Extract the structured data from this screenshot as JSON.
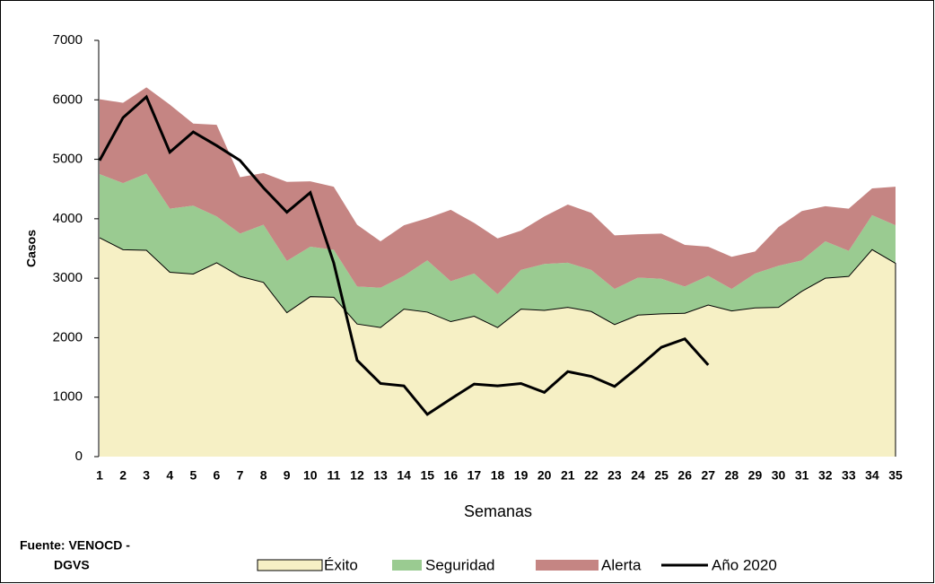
{
  "chart_data": {
    "type": "area",
    "x_label": "Semanas",
    "y_label": "Casos",
    "source": [
      "Fuente: VENOCD -",
      "DGVS"
    ],
    "categories": [
      "1",
      "2",
      "3",
      "4",
      "5",
      "6",
      "7",
      "8",
      "9",
      "10",
      "11",
      "12",
      "13",
      "14",
      "15",
      "16",
      "17",
      "18",
      "19",
      "20",
      "21",
      "22",
      "23",
      "24",
      "25",
      "26",
      "27",
      "28",
      "29",
      "30",
      "31",
      "32",
      "33",
      "34",
      "35"
    ],
    "ylim": [
      0,
      7000
    ],
    "yticks": [
      0,
      1000,
      2000,
      3000,
      4000,
      5000,
      6000,
      7000
    ],
    "grid": false,
    "series": [
      {
        "name": "Éxito",
        "color": "#f6f0c5",
        "type": "area",
        "values": [
          3680,
          3480,
          3470,
          3100,
          3070,
          3260,
          3030,
          2930,
          2420,
          2690,
          2680,
          2230,
          2170,
          2480,
          2430,
          2270,
          2360,
          2170,
          2480,
          2460,
          2510,
          2440,
          2220,
          2380,
          2400,
          2410,
          2550,
          2450,
          2500,
          2510,
          2780,
          3000,
          3030,
          3480,
          3250
        ]
      },
      {
        "name": "Seguridad",
        "color": "#9acb91",
        "type": "area",
        "values": [
          1070,
          1120,
          1290,
          1070,
          1150,
          780,
          720,
          970,
          870,
          840,
          800,
          630,
          670,
          560,
          870,
          680,
          720,
          560,
          660,
          780,
          750,
          700,
          600,
          630,
          590,
          450,
          490,
          370,
          580,
          700,
          520,
          620,
          430,
          580,
          640
        ]
      },
      {
        "name": "Alerta",
        "color": "#c58583",
        "type": "area",
        "values": [
          1260,
          1350,
          1450,
          1750,
          1380,
          1540,
          950,
          870,
          1330,
          1100,
          1060,
          1040,
          780,
          850,
          710,
          1200,
          850,
          940,
          660,
          800,
          980,
          960,
          900,
          730,
          760,
          700,
          490,
          540,
          370,
          650,
          830,
          590,
          710,
          450,
          650
        ]
      },
      {
        "name": "Año 2020",
        "color": "#000000",
        "type": "line",
        "values": [
          4980,
          5700,
          6050,
          5120,
          5460,
          5230,
          4980,
          4520,
          4110,
          4440,
          3260,
          1620,
          1230,
          1190,
          710,
          970,
          1220,
          1190,
          1230,
          1080,
          1430,
          1350,
          1180,
          1500,
          1840,
          1980,
          1540,
          null,
          null,
          null,
          null,
          null,
          null,
          null,
          null
        ]
      }
    ]
  }
}
